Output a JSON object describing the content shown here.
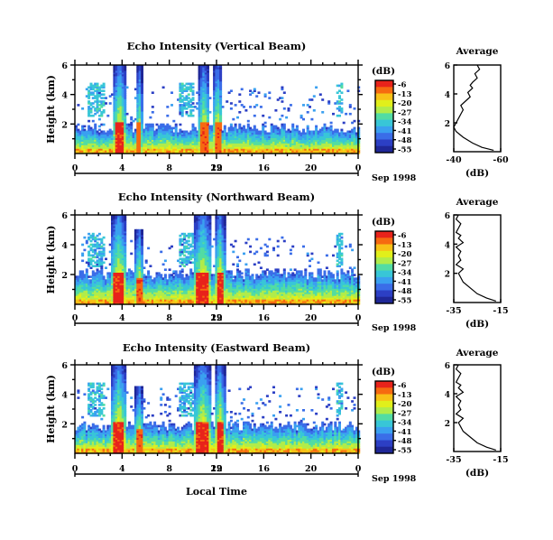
{
  "colorbar": {
    "unit": "(dB)",
    "ticks": [
      "-6",
      "-13",
      "-20",
      "-27",
      "-34",
      "-41",
      "-48",
      "-55"
    ],
    "colors": [
      "#e8231b",
      "#f66a10",
      "#f8c117",
      "#e1ef1b",
      "#b0ec4b",
      "#52dca3",
      "#38c6d7",
      "#3aa0f0",
      "#3a6de8",
      "#2c3fc4",
      "#1f2797"
    ]
  },
  "common": {
    "date_label": "Sep 1998",
    "day_label": "29",
    "xticks": [
      "0",
      "4",
      "8",
      "12",
      "16",
      "20",
      "0"
    ],
    "xlabel_bottom": "Local Time",
    "ylabel": "Height (km)",
    "yticks": [
      "2",
      "4",
      "6"
    ],
    "avg_title": "Average",
    "avg_xlabel": "(dB)"
  },
  "chart_data": [
    {
      "type": "heatmap",
      "title": "Echo Intensity (Vertical Beam)",
      "x_unit": "local time (h)",
      "xlim": [
        0,
        24
      ],
      "ylim": [
        0,
        6
      ],
      "ylabel": "Height (km)",
      "clim": [
        -55,
        -6
      ],
      "colorbar_label": "(dB)",
      "features": [
        {
          "t_start": 3.2,
          "t_end": 4.2,
          "top_km": 6.0,
          "level_db": -6
        },
        {
          "t_start": 5.1,
          "t_end": 5.6,
          "top_km": 6.0,
          "level_db": -10
        },
        {
          "t_start": 10.4,
          "t_end": 11.3,
          "top_km": 6.0,
          "level_db": -8
        },
        {
          "t_start": 11.6,
          "t_end": 12.4,
          "top_km": 6.0,
          "level_db": -8
        },
        {
          "t_start": 0.0,
          "t_end": 24.0,
          "top_km": 1.7,
          "level_db": -34
        }
      ]
    },
    {
      "type": "line",
      "title": "Average",
      "xlabel": "(dB)",
      "xlim": [
        -40,
        -60
      ],
      "xticks": [
        "-40",
        "-60"
      ],
      "ylim": [
        0,
        6
      ],
      "x": [
        -57,
        -52,
        -48,
        -44,
        -41,
        -40,
        -41,
        -42,
        -43,
        -44,
        -43,
        -45,
        -47,
        -46,
        -48,
        -47,
        -48,
        -50,
        -49,
        -51,
        -50
      ],
      "y": [
        0.1,
        0.3,
        0.6,
        1.0,
        1.4,
        1.7,
        2.0,
        2.3,
        2.6,
        2.9,
        3.2,
        3.5,
        3.8,
        4.1,
        4.4,
        4.6,
        4.8,
        5.1,
        5.4,
        5.7,
        6.0
      ]
    },
    {
      "type": "heatmap",
      "title": "Echo Intensity (Northward Beam)",
      "x_unit": "local time (h)",
      "xlim": [
        0,
        24
      ],
      "ylim": [
        0,
        6
      ],
      "ylabel": "Height (km)",
      "clim": [
        -55,
        -6
      ],
      "colorbar_label": "(dB)",
      "features": [
        {
          "t_start": 3.0,
          "t_end": 4.3,
          "top_km": 6.0,
          "level_db": -6
        },
        {
          "t_start": 5.0,
          "t_end": 5.7,
          "top_km": 5.0,
          "level_db": -8
        },
        {
          "t_start": 10.0,
          "t_end": 11.5,
          "top_km": 6.0,
          "level_db": -6
        },
        {
          "t_start": 11.8,
          "t_end": 12.6,
          "top_km": 6.0,
          "level_db": -6
        },
        {
          "t_start": 0.0,
          "t_end": 24.0,
          "top_km": 2.0,
          "level_db": -34
        }
      ]
    },
    {
      "type": "line",
      "title": "Average",
      "xlabel": "(dB)",
      "xlim": [
        -35,
        -15
      ],
      "xticks": [
        "-35",
        "-15"
      ],
      "ylim": [
        0,
        6
      ],
      "x": [
        -17,
        -21,
        -25,
        -28,
        -31,
        -32,
        -33,
        -31,
        -34,
        -32,
        -33,
        -32,
        -34,
        -31,
        -33,
        -32,
        -34,
        -33,
        -32,
        -34,
        -33
      ],
      "y": [
        0.1,
        0.3,
        0.6,
        1.0,
        1.4,
        1.7,
        2.0,
        2.3,
        2.6,
        2.9,
        3.2,
        3.5,
        3.8,
        4.1,
        4.4,
        4.6,
        4.8,
        5.1,
        5.4,
        5.7,
        6.0
      ]
    },
    {
      "type": "heatmap",
      "title": "Echo Intensity (Eastward Beam)",
      "x_unit": "local time (h)",
      "xlim": [
        0,
        24
      ],
      "ylim": [
        0,
        6
      ],
      "ylabel": "Height (km)",
      "xlabel": "Local Time",
      "clim": [
        -55,
        -6
      ],
      "colorbar_label": "(dB)",
      "features": [
        {
          "t_start": 3.0,
          "t_end": 4.3,
          "top_km": 6.0,
          "level_db": -6
        },
        {
          "t_start": 5.0,
          "t_end": 5.7,
          "top_km": 4.5,
          "level_db": -8
        },
        {
          "t_start": 10.0,
          "t_end": 11.5,
          "top_km": 6.0,
          "level_db": -6
        },
        {
          "t_start": 11.8,
          "t_end": 12.6,
          "top_km": 6.0,
          "level_db": -6
        },
        {
          "t_start": 0.0,
          "t_end": 24.0,
          "top_km": 1.8,
          "level_db": -34
        }
      ]
    },
    {
      "type": "line",
      "title": "Average",
      "xlabel": "(dB)",
      "xlim": [
        -35,
        -15
      ],
      "xticks": [
        "-35",
        "-15"
      ],
      "ylim": [
        0,
        6
      ],
      "x": [
        -17,
        -21,
        -25,
        -28,
        -31,
        -32,
        -33,
        -31,
        -34,
        -32,
        -33,
        -32,
        -34,
        -31,
        -33,
        -32,
        -34,
        -33,
        -32,
        -34,
        -33
      ],
      "y": [
        0.1,
        0.3,
        0.6,
        1.0,
        1.4,
        1.7,
        2.0,
        2.3,
        2.6,
        2.9,
        3.2,
        3.5,
        3.8,
        4.1,
        4.4,
        4.6,
        4.8,
        5.1,
        5.4,
        5.7,
        6.0
      ]
    }
  ]
}
